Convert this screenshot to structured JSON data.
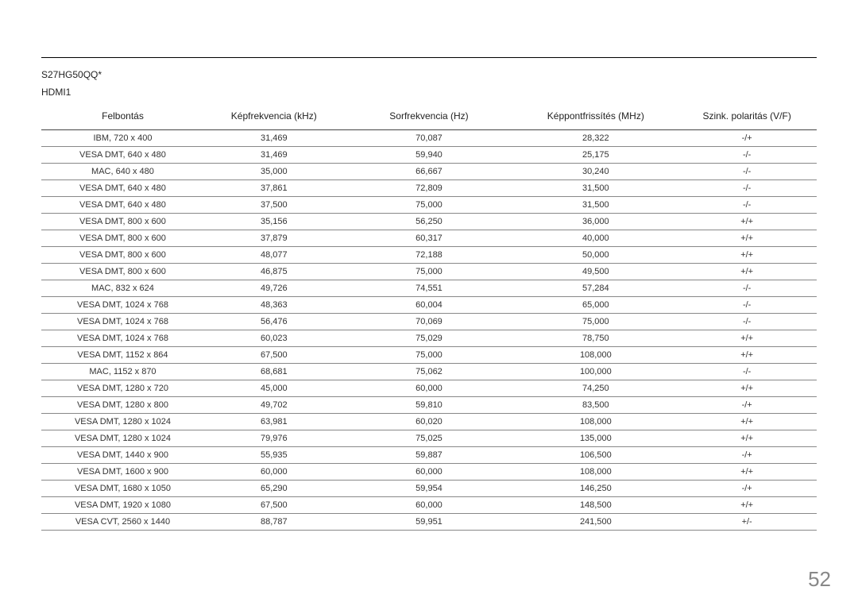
{
  "model": "S27HG50QQ*",
  "port": "HDMI1",
  "page_number": "52",
  "table": {
    "columns": [
      "Felbontás",
      "Képfrekvencia (kHz)",
      "Sorfrekvencia (Hz)",
      "Képpontfrissítés (MHz)",
      "Szink. polaritás (V/F)"
    ],
    "rows": [
      [
        "IBM, 720 x 400",
        "31,469",
        "70,087",
        "28,322",
        "-/+"
      ],
      [
        "VESA DMT, 640 x 480",
        "31,469",
        "59,940",
        "25,175",
        "-/-"
      ],
      [
        "MAC, 640 x 480",
        "35,000",
        "66,667",
        "30,240",
        "-/-"
      ],
      [
        "VESA DMT, 640 x 480",
        "37,861",
        "72,809",
        "31,500",
        "-/-"
      ],
      [
        "VESA DMT, 640 x 480",
        "37,500",
        "75,000",
        "31,500",
        "-/-"
      ],
      [
        "VESA DMT, 800 x 600",
        "35,156",
        "56,250",
        "36,000",
        "+/+"
      ],
      [
        "VESA DMT, 800 x 600",
        "37,879",
        "60,317",
        "40,000",
        "+/+"
      ],
      [
        "VESA DMT, 800 x 600",
        "48,077",
        "72,188",
        "50,000",
        "+/+"
      ],
      [
        "VESA DMT, 800 x 600",
        "46,875",
        "75,000",
        "49,500",
        "+/+"
      ],
      [
        "MAC, 832 x 624",
        "49,726",
        "74,551",
        "57,284",
        "-/-"
      ],
      [
        "VESA DMT, 1024 x 768",
        "48,363",
        "60,004",
        "65,000",
        "-/-"
      ],
      [
        "VESA DMT, 1024 x 768",
        "56,476",
        "70,069",
        "75,000",
        "-/-"
      ],
      [
        "VESA DMT, 1024 x 768",
        "60,023",
        "75,029",
        "78,750",
        "+/+"
      ],
      [
        "VESA DMT, 1152 x 864",
        "67,500",
        "75,000",
        "108,000",
        "+/+"
      ],
      [
        "MAC, 1152 x 870",
        "68,681",
        "75,062",
        "100,000",
        "-/-"
      ],
      [
        "VESA DMT, 1280 x 720",
        "45,000",
        "60,000",
        "74,250",
        "+/+"
      ],
      [
        "VESA DMT, 1280 x 800",
        "49,702",
        "59,810",
        "83,500",
        "-/+"
      ],
      [
        "VESA DMT, 1280 x 1024",
        "63,981",
        "60,020",
        "108,000",
        "+/+"
      ],
      [
        "VESA DMT, 1280 x 1024",
        "79,976",
        "75,025",
        "135,000",
        "+/+"
      ],
      [
        "VESA DMT, 1440 x 900",
        "55,935",
        "59,887",
        "106,500",
        "-/+"
      ],
      [
        "VESA DMT, 1600 x 900",
        "60,000",
        "60,000",
        "108,000",
        "+/+"
      ],
      [
        "VESA DMT, 1680 x 1050",
        "65,290",
        "59,954",
        "146,250",
        "-/+"
      ],
      [
        "VESA DMT, 1920 x 1080",
        "67,500",
        "60,000",
        "148,500",
        "+/+"
      ],
      [
        "VESA CVT, 2560 x 1440",
        "88,787",
        "59,951",
        "241,500",
        "+/-"
      ]
    ]
  }
}
